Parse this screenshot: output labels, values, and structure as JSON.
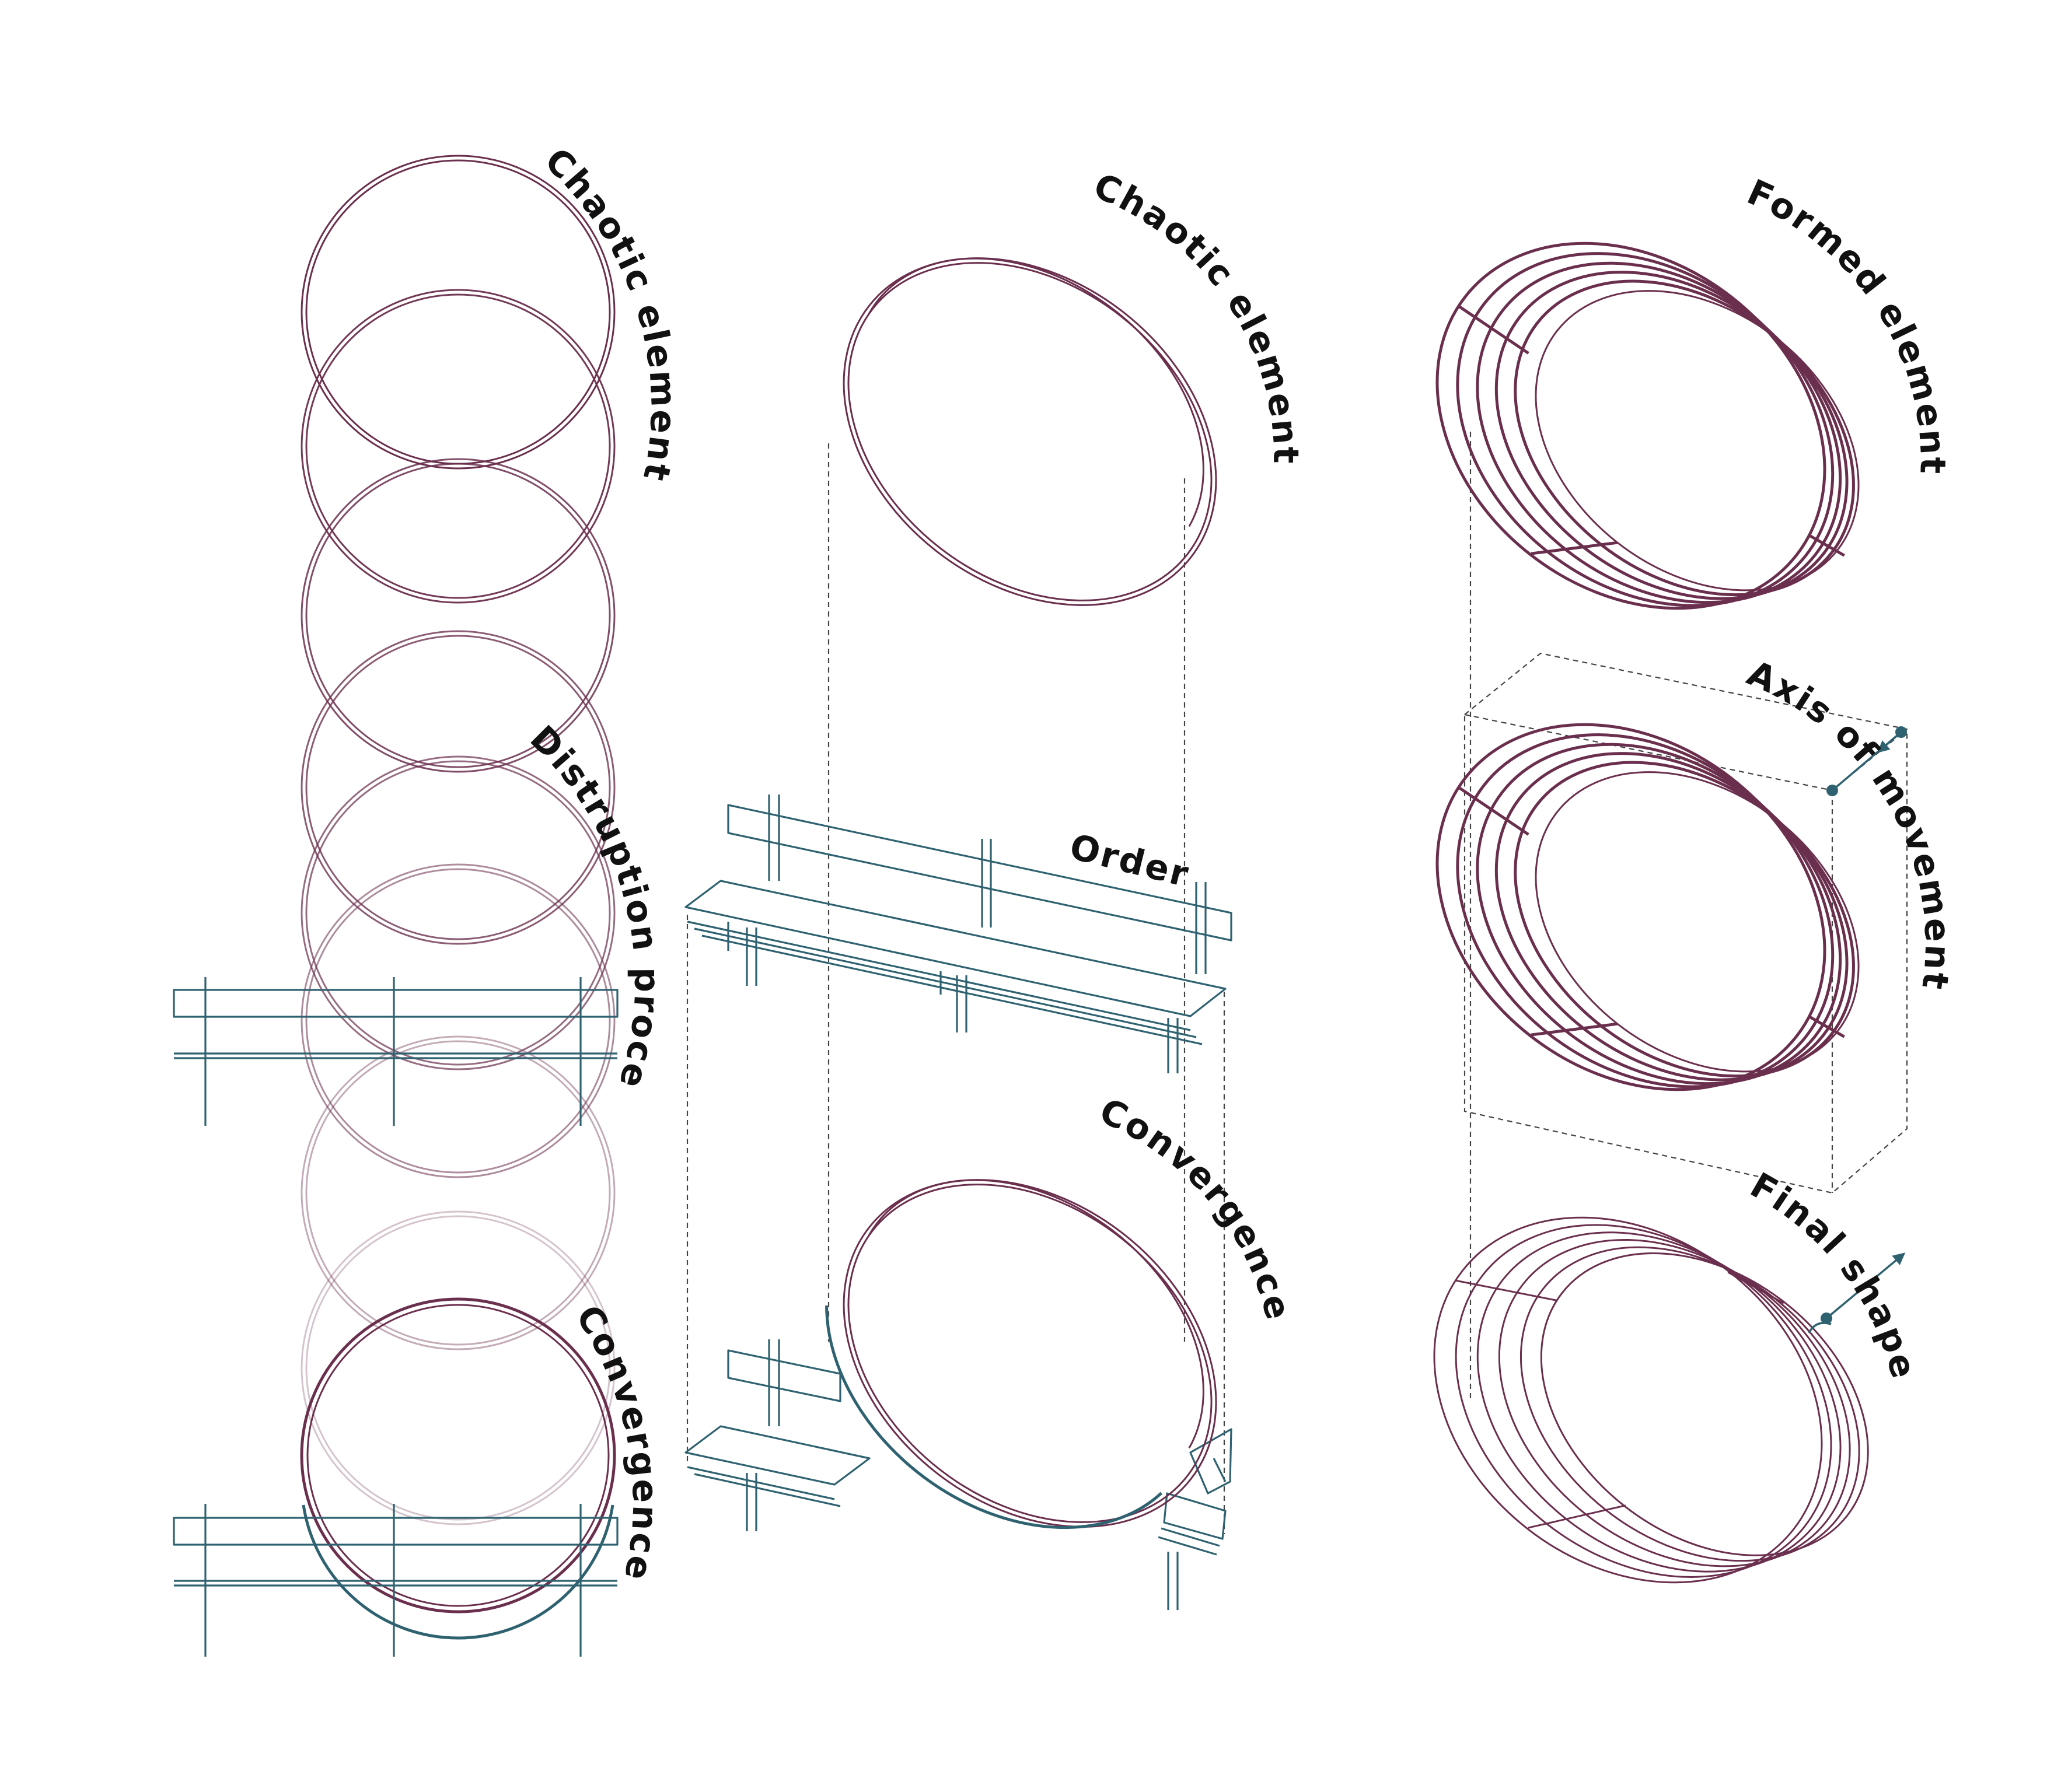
{
  "labels": {
    "col1_top": "Chaotic element",
    "col1_mid": "Distruption process",
    "col1_bottom": "Convergence",
    "col2_top": "Chaotic element",
    "col2_mid": "Order",
    "col2_bottom": "Convergence",
    "col3_top": "Formed element",
    "col3_mid": "Axis of movement",
    "col3_bottom": "Final shape"
  },
  "colors": {
    "ring": "#6b2f4e",
    "bench": "#2f6270",
    "guide": "#444444",
    "text": "#111111"
  },
  "icons": {
    "axis_marker": "axis-arrow-icon"
  }
}
